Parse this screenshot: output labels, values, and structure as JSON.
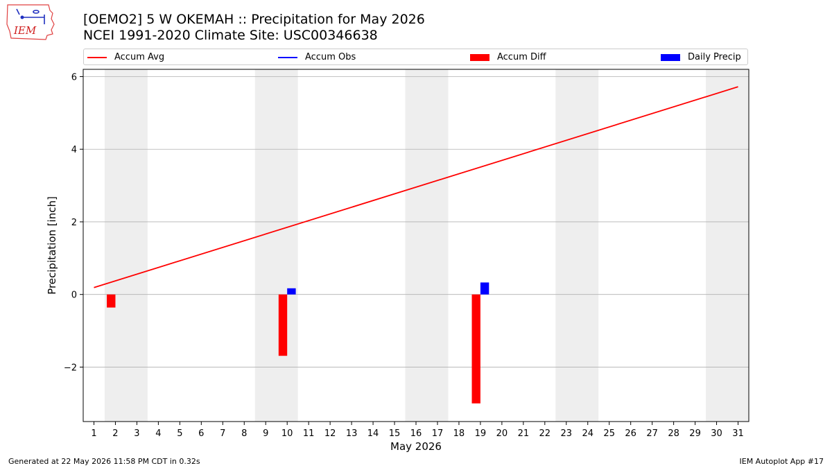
{
  "logo": {
    "text": "IEM"
  },
  "title": {
    "line1": "[OEMO2] 5 W OKEMAH :: Precipitation for May 2026",
    "line2": "NCEI 1991-2020 Climate Site: USC00346638"
  },
  "footer": {
    "left": "Generated at 22 May 2026 11:58 PM CDT in 0.32s",
    "right": "IEM Autoplot App #17"
  },
  "colors": {
    "accum_avg": "#ff0000",
    "accum_obs": "#0000ff",
    "accum_diff": "#ff0000",
    "daily_precip": "#0000ff",
    "weekend_shade": "#eeeeee",
    "grid": "#b0b0b0"
  },
  "chart_data": {
    "type": "bar",
    "xlabel": "May 2026",
    "ylabel": "Precipitation [inch]",
    "xlim": [
      0.5,
      31.5
    ],
    "ylim": [
      -3.5,
      6.2
    ],
    "x_ticks": [
      1,
      2,
      3,
      4,
      5,
      6,
      7,
      8,
      9,
      10,
      11,
      12,
      13,
      14,
      15,
      16,
      17,
      18,
      19,
      20,
      21,
      22,
      23,
      24,
      25,
      26,
      27,
      28,
      29,
      30,
      31
    ],
    "y_ticks": [
      -2,
      0,
      2,
      4,
      6
    ],
    "y_tick_labels": [
      "−2",
      "0",
      "2",
      "4",
      "6"
    ],
    "grid": "horizontal",
    "legend_position": "top, above plot",
    "weekend_shading": [
      [
        1.5,
        3.5
      ],
      [
        8.5,
        10.5
      ],
      [
        15.5,
        17.5
      ],
      [
        22.5,
        24.5
      ],
      [
        29.5,
        31.5
      ]
    ],
    "series": [
      {
        "name": "Accum Avg",
        "kind": "line",
        "x": [
          1,
          31
        ],
        "y": [
          0.19,
          5.72
        ]
      },
      {
        "name": "Accum Obs",
        "kind": "line",
        "x": [],
        "y": []
      },
      {
        "name": "Accum Diff",
        "kind": "bar",
        "x": [
          2,
          10,
          19
        ],
        "y": [
          -0.36,
          -1.69,
          -3.0
        ]
      },
      {
        "name": "Daily Precip",
        "kind": "bar",
        "x": [
          2,
          10,
          19
        ],
        "y": [
          0.0,
          0.17,
          0.33
        ]
      }
    ]
  }
}
